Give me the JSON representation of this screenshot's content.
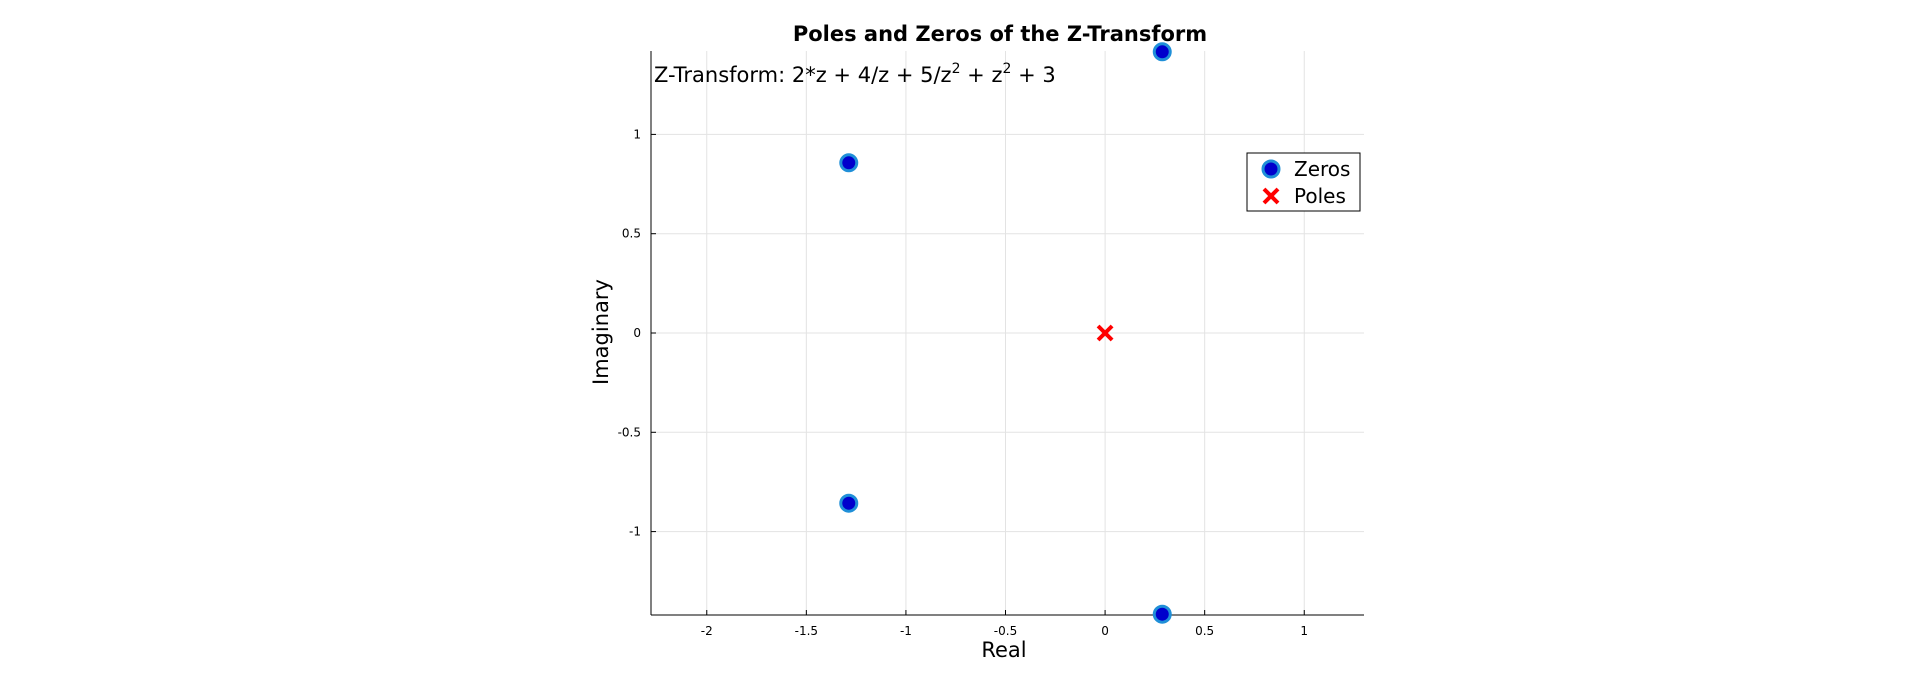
{
  "chart_data": {
    "type": "scatter",
    "title": "Poles and Zeros of the Z-Transform",
    "annotation": {
      "text": "Z-Transform: 2*z + 4/z + 5/z",
      "sup1": "2",
      "mid": " + z",
      "sup2": "2",
      "tail": " + 3"
    },
    "xlabel": "Real",
    "ylabel": "Imaginary",
    "xlim": [
      -2.28,
      1.3
    ],
    "ylim": [
      -1.42,
      1.42
    ],
    "x_ticks": [
      -2,
      -1.5,
      -1,
      -0.5,
      0,
      0.5,
      1
    ],
    "x_tick_labels": [
      "-2",
      "-1.5",
      "-1",
      "-0.5",
      "0",
      "0.5",
      "1"
    ],
    "y_ticks": [
      -1,
      -0.5,
      0,
      0.5,
      1
    ],
    "y_tick_labels": [
      "-1",
      "-0.5",
      "0",
      "0.5",
      "1"
    ],
    "grid": true,
    "legend_position": "top-right",
    "series": [
      {
        "name": "Zeros",
        "marker": "circle",
        "color": "#0000cc",
        "edge_color": "#1f8fd8",
        "points": [
          [
            0.287,
            1.416
          ],
          [
            -1.287,
            0.857
          ],
          [
            -1.287,
            -0.857
          ],
          [
            0.287,
            -1.416
          ]
        ]
      },
      {
        "name": "Poles",
        "marker": "x",
        "color": "#ff0000",
        "points": [
          [
            0,
            0
          ]
        ]
      }
    ]
  }
}
